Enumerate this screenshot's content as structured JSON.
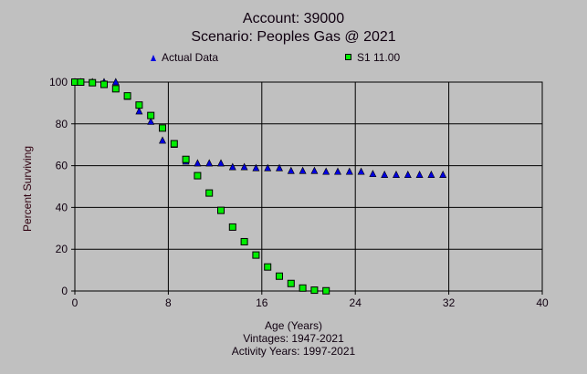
{
  "chart_data": {
    "type": "scatter",
    "title": "Account: 39000",
    "subtitle": "Scenario: Peoples Gas @ 2021",
    "xlabel": "Age (Years)",
    "ylabel": "Percent Surviving",
    "notes": [
      "Vintages: 1947-2021",
      "Activity Years: 1997-2021"
    ],
    "xlim": [
      0,
      40
    ],
    "ylim": [
      0,
      100
    ],
    "xticks": [
      0,
      8,
      16,
      24,
      32,
      40
    ],
    "yticks": [
      0,
      20,
      40,
      60,
      80,
      100
    ],
    "grid": true,
    "legend_placement": "top",
    "background": "#c0c0c0",
    "series": [
      {
        "name": "Actual Data",
        "marker": "triangle",
        "color": "#0000e0",
        "x": [
          0,
          0.5,
          1.5,
          2.5,
          3.5,
          4.5,
          5.5,
          6.5,
          7.5,
          8.5,
          9.5,
          10.5,
          11.5,
          12.5,
          13.5,
          14.5,
          15.5,
          16.5,
          17.5,
          18.5,
          19.5,
          20.5,
          21.5,
          22.5,
          23.5,
          24.5,
          25.5,
          26.5,
          27.5,
          28.5,
          29.5,
          30.5,
          31.5
        ],
        "y": [
          100,
          100,
          100,
          100,
          100,
          93,
          86,
          81,
          72,
          70,
          62,
          61.1,
          61.1,
          61.1,
          59.3,
          59.3,
          58.8,
          58.8,
          58.8,
          57.5,
          57.5,
          57.5,
          57.1,
          57.1,
          57.1,
          57.1,
          56.0,
          55.6,
          55.6,
          55.6,
          55.6,
          55.6,
          55.6
        ]
      },
      {
        "name": "S1 11.00",
        "marker": "square",
        "color": "#00ee00",
        "x": [
          0,
          0.5,
          1.5,
          2.5,
          3.5,
          4.5,
          5.5,
          6.5,
          7.5,
          8.5,
          9.5,
          10.5,
          11.5,
          12.5,
          13.5,
          14.5,
          15.5,
          16.5,
          17.5,
          18.5,
          19.5,
          20.5,
          21.5
        ],
        "y": [
          100,
          100,
          99.7,
          98.9,
          96.8,
          93.4,
          89,
          84,
          78,
          70.5,
          63,
          55.2,
          46.9,
          38.6,
          30.6,
          23.6,
          17.2,
          11.5,
          7.1,
          3.6,
          1.4,
          0.4,
          0.1
        ]
      }
    ]
  }
}
